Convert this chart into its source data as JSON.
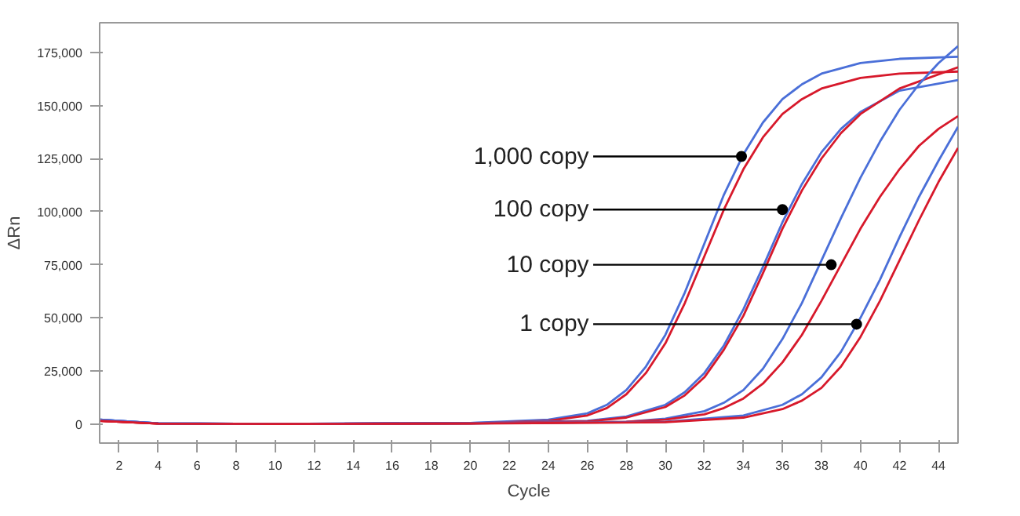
{
  "chart_data": {
    "type": "line",
    "xlabel": "Cycle",
    "ylabel": "ΔRn",
    "xlim": [
      1,
      45
    ],
    "ylim": [
      -9000,
      189000
    ],
    "xticks": [
      2,
      4,
      6,
      8,
      10,
      12,
      14,
      16,
      18,
      20,
      22,
      24,
      26,
      28,
      30,
      32,
      34,
      36,
      38,
      40,
      42,
      44
    ],
    "yticks": [
      0,
      {
        "value": 25000,
        "label": "25,000"
      },
      {
        "value": 50000,
        "label": "50,000"
      },
      {
        "value": 75000,
        "label": "75,000"
      },
      {
        "value": 100000,
        "label": "100,000"
      },
      {
        "value": 125000,
        "label": "125,000"
      },
      {
        "value": 150000,
        "label": "150,000"
      },
      {
        "value": 175000,
        "label": "175,000"
      }
    ],
    "grid": false,
    "marker": "none",
    "line_style": "solid",
    "series": [
      {
        "color": "#4a6fd8",
        "x": [
          1,
          4,
          10,
          20,
          24,
          26,
          27,
          28,
          29,
          30,
          31,
          32,
          33,
          34,
          35,
          36,
          37,
          38,
          40,
          42,
          45
        ],
        "values": [
          2000,
          300,
          0,
          500,
          2000,
          5000,
          9000,
          16000,
          27000,
          42000,
          62000,
          85000,
          108000,
          127000,
          142000,
          153000,
          160000,
          165000,
          170000,
          172000,
          173000
        ]
      },
      {
        "color": "#d7192b",
        "x": [
          1,
          4,
          10,
          20,
          24,
          26,
          27,
          28,
          29,
          30,
          31,
          32,
          33,
          34,
          35,
          36,
          37,
          38,
          40,
          42,
          45
        ],
        "values": [
          1500,
          200,
          0,
          300,
          1500,
          4000,
          7500,
          14000,
          24000,
          38000,
          57000,
          79000,
          101000,
          120000,
          135000,
          146000,
          153000,
          158000,
          163000,
          165000,
          166000
        ]
      },
      {
        "color": "#4a6fd8",
        "x": [
          1,
          4,
          10,
          20,
          26,
          28,
          30,
          31,
          32,
          33,
          34,
          35,
          36,
          37,
          38,
          39,
          40,
          42,
          45
        ],
        "values": [
          2000,
          300,
          0,
          500,
          1500,
          3500,
          9000,
          15000,
          24000,
          37000,
          54000,
          74000,
          95000,
          113000,
          128000,
          139000,
          147000,
          157000,
          162000
        ]
      },
      {
        "color": "#d7192b",
        "x": [
          1,
          4,
          10,
          20,
          26,
          28,
          30,
          31,
          32,
          33,
          34,
          35,
          36,
          37,
          38,
          39,
          40,
          42,
          45
        ],
        "values": [
          1500,
          200,
          0,
          300,
          1200,
          3000,
          8000,
          13500,
          22000,
          35000,
          51000,
          71000,
          92000,
          110000,
          125000,
          137000,
          146000,
          158000,
          168000
        ]
      },
      {
        "color": "#4a6fd8",
        "x": [
          1,
          4,
          10,
          20,
          28,
          30,
          32,
          33,
          34,
          35,
          36,
          37,
          38,
          39,
          40,
          41,
          42,
          43,
          44,
          45
        ],
        "values": [
          2000,
          300,
          0,
          300,
          1000,
          2500,
          6000,
          10000,
          16000,
          26000,
          40000,
          57000,
          77000,
          97000,
          116000,
          133000,
          148000,
          160000,
          170000,
          178000
        ]
      },
      {
        "color": "#d7192b",
        "x": [
          1,
          4,
          10,
          20,
          28,
          30,
          32,
          33,
          34,
          35,
          36,
          37,
          38,
          39,
          40,
          41,
          42,
          43,
          44,
          45
        ],
        "values": [
          1500,
          200,
          0,
          300,
          1000,
          2000,
          4500,
          7500,
          12000,
          19000,
          29000,
          42000,
          58000,
          75000,
          92000,
          107000,
          120000,
          131000,
          139000,
          145000
        ]
      },
      {
        "color": "#4a6fd8",
        "x": [
          1,
          4,
          10,
          20,
          30,
          34,
          36,
          37,
          38,
          39,
          40,
          41,
          42,
          43,
          44,
          45
        ],
        "values": [
          2000,
          300,
          0,
          300,
          1000,
          4000,
          9000,
          14000,
          22000,
          34000,
          50000,
          68000,
          88000,
          107000,
          124000,
          140000
        ]
      },
      {
        "color": "#d7192b",
        "x": [
          1,
          4,
          10,
          20,
          30,
          34,
          36,
          37,
          38,
          39,
          40,
          41,
          42,
          43,
          44,
          45
        ],
        "values": [
          1500,
          200,
          0,
          200,
          800,
          3000,
          7000,
          11000,
          17000,
          27000,
          41000,
          58000,
          77000,
          96000,
          114000,
          130000
        ]
      }
    ],
    "annotations": [
      {
        "text": "1,000 copy",
        "x": 33.9,
        "y": 126000
      },
      {
        "text": "100 copy",
        "x": 36,
        "y": 101000
      },
      {
        "text": "10 copy",
        "x": 38.5,
        "y": 75000
      },
      {
        "text": "1 copy",
        "x": 39.8,
        "y": 47000
      }
    ]
  }
}
